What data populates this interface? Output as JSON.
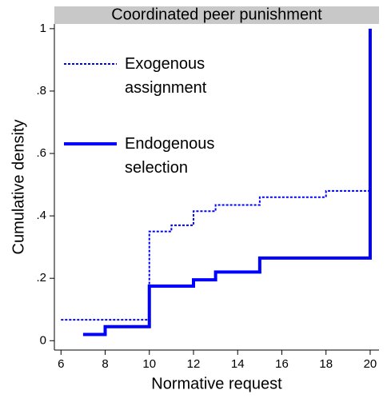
{
  "chart_data": {
    "type": "step",
    "title": "Coordinated peer punishment",
    "x_label": "Normative request",
    "y_label": "Cumulative density",
    "xlim": [
      5.7,
      20.4
    ],
    "xticks": [
      6,
      8,
      10,
      12,
      14,
      16,
      18,
      20
    ],
    "ylim": [
      -0.03,
      1.015
    ],
    "yticks": [
      {
        "value": 0,
        "label": "0"
      },
      {
        "value": 0.2,
        "label": ".2"
      },
      {
        "value": 0.4,
        "label": ".4"
      },
      {
        "value": 0.6,
        "label": ".6"
      },
      {
        "value": 0.8,
        "label": ".8"
      },
      {
        "value": 1,
        "label": "1"
      }
    ],
    "series": [
      {
        "name": "Exogenous assignment",
        "color": "#0000ff",
        "line_style": "dotted",
        "x": [
          6,
          10,
          11,
          12,
          13,
          15,
          18,
          20
        ],
        "values": [
          0.067,
          0.35,
          0.37,
          0.415,
          0.435,
          0.46,
          0.48,
          0.48
        ]
      },
      {
        "name": "Endogenous selection",
        "color": "#0000ff",
        "line_style": "solid",
        "x": [
          7,
          8,
          10,
          12,
          13,
          15,
          20
        ],
        "values": [
          0.02,
          0.045,
          0.175,
          0.195,
          0.22,
          0.265,
          1
        ]
      }
    ]
  }
}
